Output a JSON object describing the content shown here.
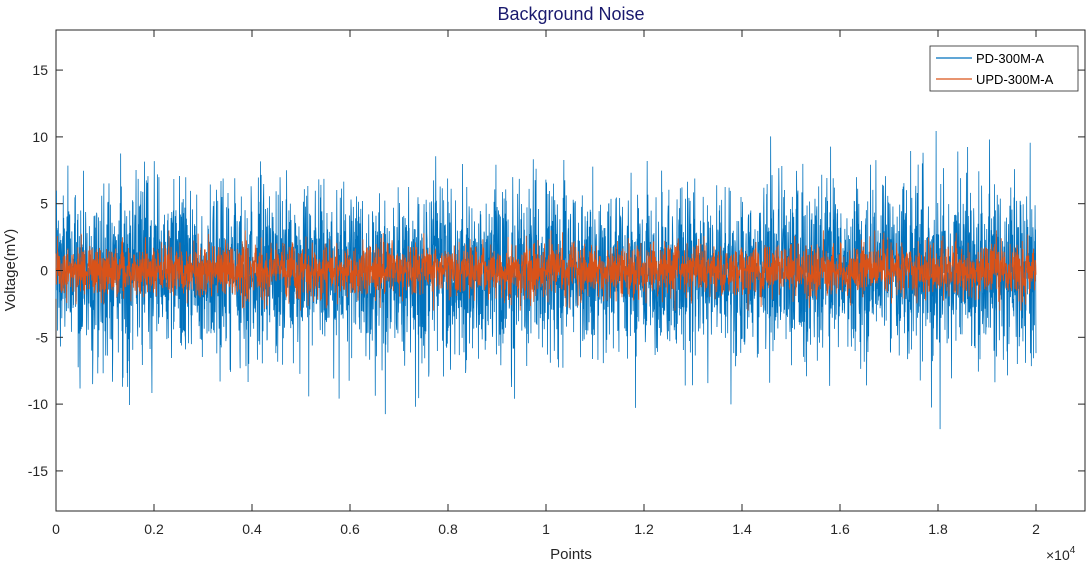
{
  "chart_data": {
    "type": "line",
    "title": "Background Noise",
    "xlabel": "Points",
    "ylabel": "Voltage(mV)",
    "x_exponent_label": "×10",
    "x_exponent": "4",
    "xlim": [
      0,
      2.1
    ],
    "ylim": [
      -18,
      18
    ],
    "x_ticks": [
      0,
      0.2,
      0.4,
      0.6,
      0.8,
      1,
      1.2,
      1.4,
      1.6,
      1.8,
      2
    ],
    "x_tick_labels": [
      "0",
      "0.2",
      "0.4",
      "0.6",
      "0.8",
      "1",
      "1.2",
      "1.4",
      "1.6",
      "1.8",
      "2"
    ],
    "y_ticks": [
      -15,
      -10,
      -5,
      0,
      5,
      10,
      15
    ],
    "y_tick_labels": [
      "-15",
      "-10",
      "-5",
      "0",
      "5",
      "10",
      "15"
    ],
    "grid": false,
    "legend_position": "top-right",
    "series": [
      {
        "name": "PD-300M-A",
        "color": "#0072BD",
        "x_range": [
          0,
          2
        ],
        "n_points": 20000,
        "approx_std": 3.2,
        "approx_max": 12.4,
        "approx_min": -13.3,
        "description_values": "noise around 0 mV"
      },
      {
        "name": "UPD-300M-A",
        "color": "#D95319",
        "x_range": [
          0,
          2
        ],
        "n_points": 20000,
        "approx_std": 1.0,
        "approx_max": 3.0,
        "approx_min": -3.0
      }
    ]
  }
}
